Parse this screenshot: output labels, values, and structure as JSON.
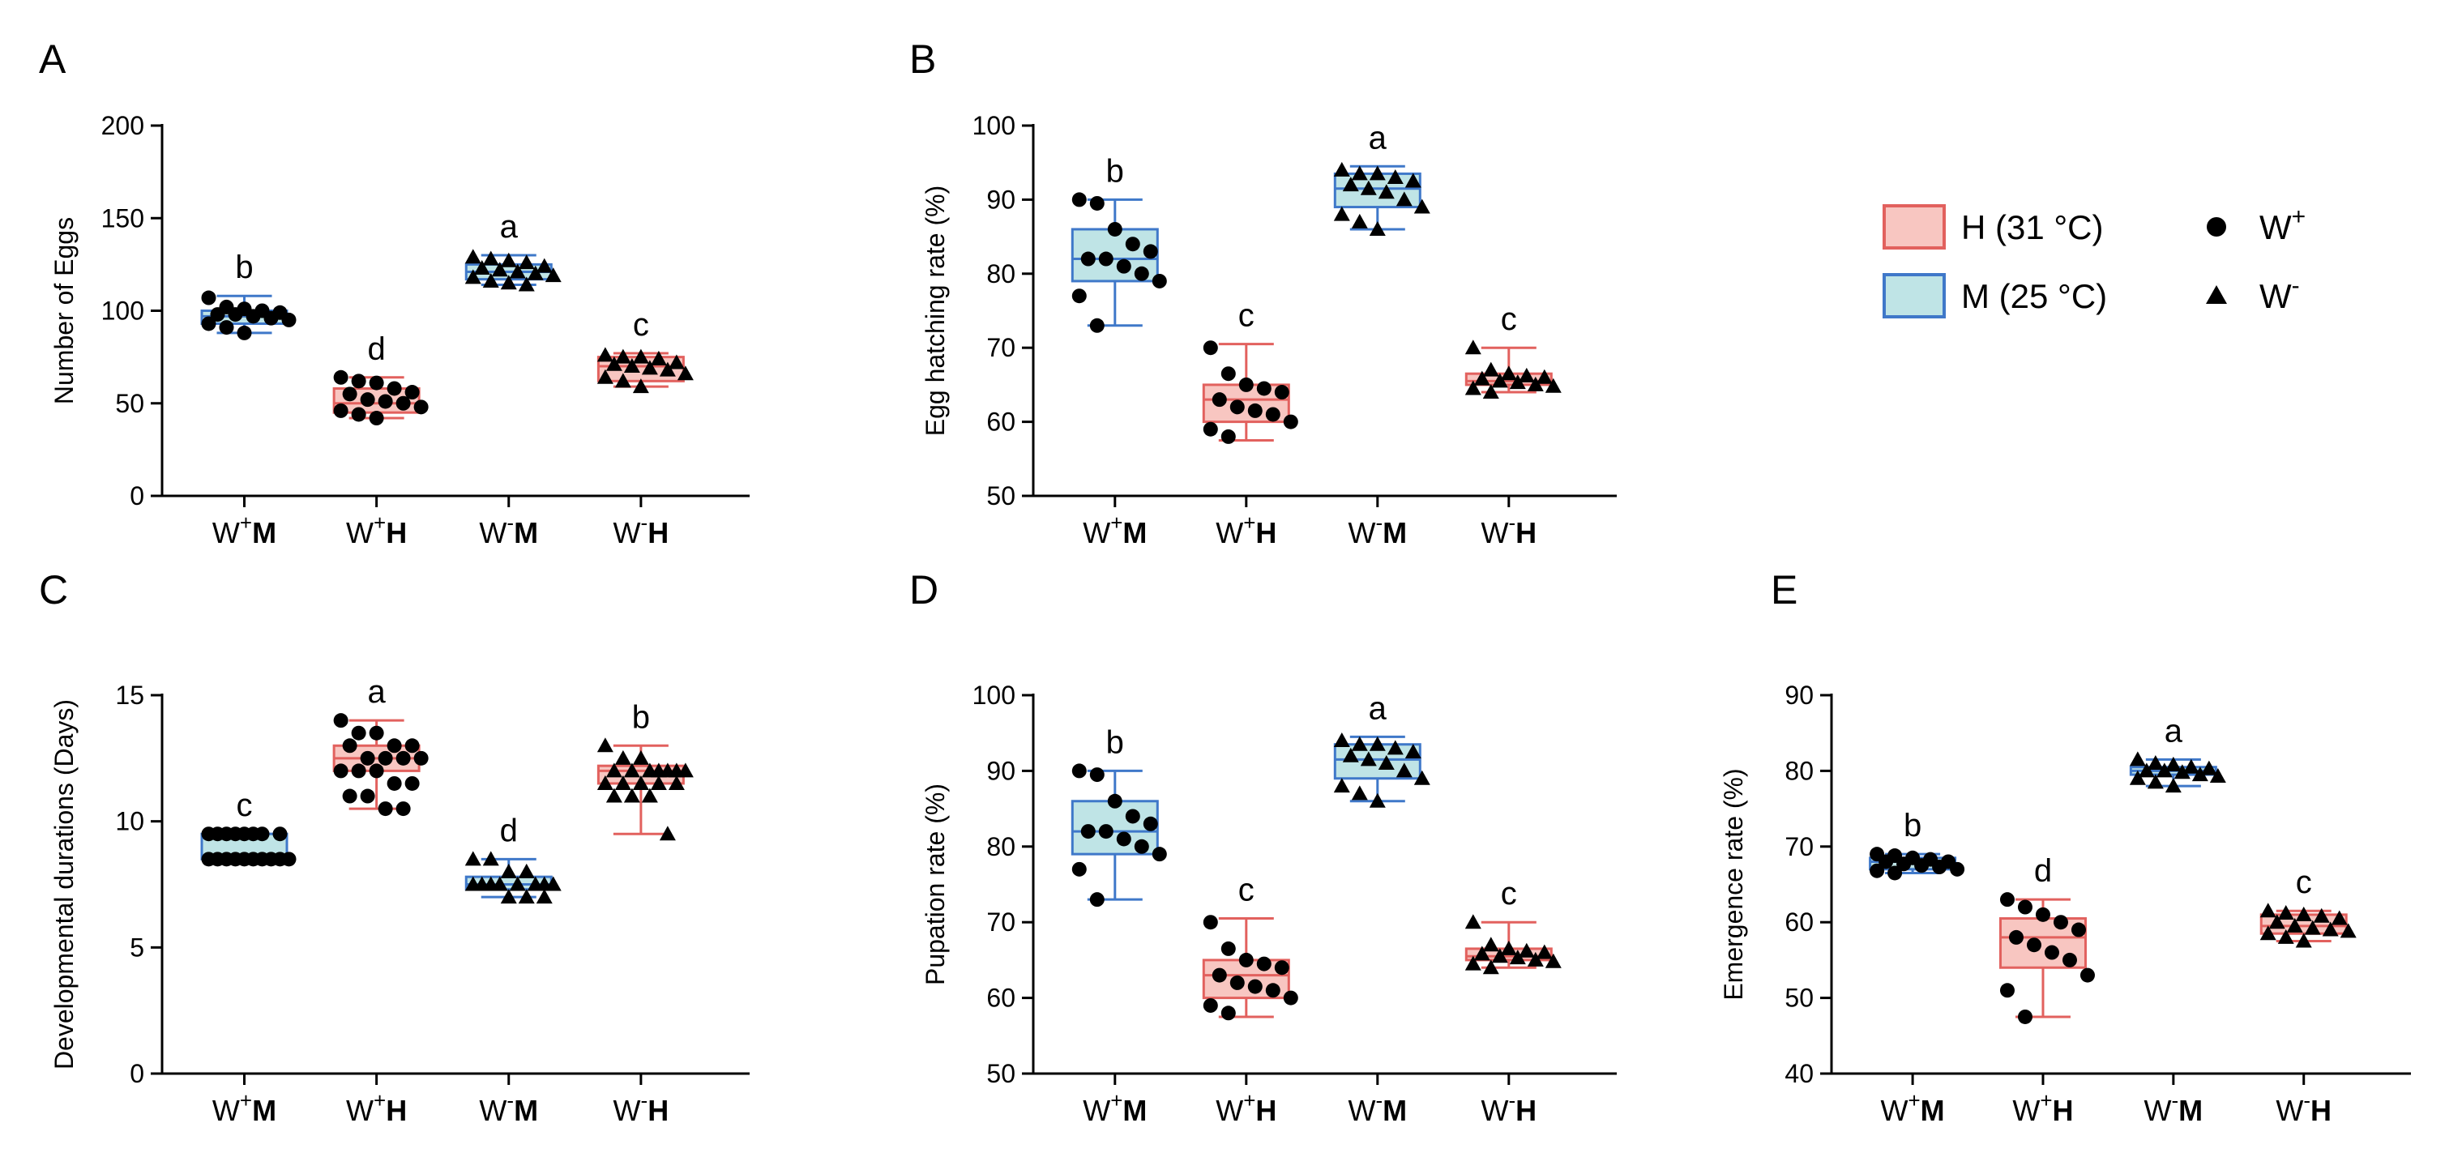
{
  "colors": {
    "H_edge": "#e2615e",
    "H_fill": "#f8c6c1",
    "M_edge": "#3f78c9",
    "M_fill": "#bfe4e6",
    "point": "#000000"
  },
  "legend": {
    "entries": [
      {
        "label": "H (31 °C)",
        "key": "H"
      },
      {
        "label": "M (25 °C)",
        "key": "M"
      },
      {
        "label": "W",
        "sup": "+",
        "marker": "circle"
      },
      {
        "label": "W",
        "sup": "-",
        "marker": "triangle"
      }
    ]
  },
  "chart_data": [
    {
      "panel": "A",
      "type": "box",
      "ylabel": "Number of Eggs",
      "ylim": [
        0,
        200
      ],
      "yticks": [
        0,
        50,
        100,
        150,
        200
      ],
      "groups": [
        {
          "w": "W",
          "sup": "+",
          "t": "M",
          "temp": "M",
          "marker": "circle",
          "letter": "b",
          "min": 88,
          "q1": 93,
          "median": 97,
          "q3": 100,
          "max": 108,
          "points": [
            107,
            102,
            101,
            100,
            99,
            98,
            98,
            97,
            96,
            95,
            93,
            91,
            88
          ]
        },
        {
          "w": "W",
          "sup": "+",
          "t": "H",
          "temp": "H",
          "marker": "circle",
          "letter": "d",
          "min": 42,
          "q1": 45,
          "median": 50,
          "q3": 58,
          "max": 64,
          "points": [
            64,
            62,
            61,
            58,
            56,
            55,
            52,
            51,
            50,
            48,
            46,
            44,
            42
          ]
        },
        {
          "w": "W",
          "sup": "-",
          "t": "M",
          "temp": "M",
          "marker": "triangle",
          "letter": "a",
          "min": 114,
          "q1": 117,
          "median": 121,
          "q3": 125,
          "max": 130,
          "points": [
            129,
            128,
            127,
            126,
            124,
            123,
            122,
            121,
            120,
            119,
            118,
            116,
            115,
            114
          ]
        },
        {
          "w": "W",
          "sup": "-",
          "t": "H",
          "temp": "H",
          "marker": "triangle",
          "letter": "c",
          "min": 59,
          "q1": 62,
          "median": 70,
          "q3": 75,
          "max": 77,
          "points": [
            76,
            75,
            75,
            74,
            72,
            71,
            70,
            69,
            68,
            66,
            64,
            62,
            59
          ]
        }
      ]
    },
    {
      "panel": "B",
      "type": "box",
      "ylabel": "Egg hatching rate (%)",
      "ylim": [
        50,
        100
      ],
      "yticks": [
        50,
        60,
        70,
        80,
        90,
        100
      ],
      "groups": [
        {
          "w": "W",
          "sup": "+",
          "t": "M",
          "temp": "M",
          "marker": "circle",
          "letter": "b",
          "min": 73,
          "q1": 79,
          "median": 82,
          "q3": 86,
          "max": 90,
          "points": [
            90,
            89.5,
            86,
            84,
            83,
            82,
            82,
            81,
            80,
            79,
            77,
            73
          ]
        },
        {
          "w": "W",
          "sup": "+",
          "t": "H",
          "temp": "H",
          "marker": "circle",
          "letter": "c",
          "min": 57.5,
          "q1": 60,
          "median": 63,
          "q3": 65,
          "max": 70.5,
          "points": [
            70,
            66.5,
            65,
            64.5,
            64,
            63,
            62,
            61.5,
            61,
            60,
            59,
            58
          ]
        },
        {
          "w": "W",
          "sup": "-",
          "t": "M",
          "temp": "M",
          "marker": "triangle",
          "letter": "a",
          "min": 86,
          "q1": 89,
          "median": 91.5,
          "q3": 93.5,
          "max": 94.5,
          "points": [
            94,
            93.5,
            93.5,
            93,
            92.5,
            92,
            91.5,
            91,
            90,
            89,
            88,
            87,
            86
          ]
        },
        {
          "w": "W",
          "sup": "-",
          "t": "H",
          "temp": "H",
          "marker": "triangle",
          "letter": "c",
          "min": 64,
          "q1": 65,
          "median": 65.5,
          "q3": 66.5,
          "max": 70,
          "points": [
            70,
            67,
            66.5,
            66.2,
            66,
            65.8,
            65.5,
            65.3,
            65,
            64.8,
            64.5,
            64
          ]
        }
      ]
    },
    {
      "panel": "C",
      "type": "box",
      "ylabel": "Developmental durations (Days)",
      "ylim": [
        0,
        15
      ],
      "yticks": [
        0,
        5,
        10,
        15
      ],
      "groups": [
        {
          "w": "W",
          "sup": "+",
          "t": "M",
          "temp": "M",
          "marker": "circle",
          "letter": "c",
          "min": 8.5,
          "q1": 8.5,
          "median": 8.5,
          "q3": 9.5,
          "max": 9.5,
          "points": [
            9.5,
            9.5,
            9.5,
            9.5,
            9.5,
            9.5,
            9.5,
            9.5,
            8.5,
            8.5,
            8.5,
            8.5,
            8.5,
            8.5,
            8.5,
            8.5,
            8.5,
            8.5
          ]
        },
        {
          "w": "W",
          "sup": "+",
          "t": "H",
          "temp": "H",
          "marker": "circle",
          "letter": "a",
          "min": 10.5,
          "q1": 12,
          "median": 12.5,
          "q3": 13,
          "max": 14,
          "points": [
            14,
            13.5,
            13.5,
            13,
            13,
            13,
            12.5,
            12.5,
            12.5,
            12.5,
            12,
            12,
            12,
            11.5,
            11.5,
            11,
            11,
            10.5,
            10.5
          ]
        },
        {
          "w": "W",
          "sup": "-",
          "t": "M",
          "temp": "M",
          "marker": "triangle",
          "letter": "d",
          "min": 7,
          "q1": 7.3,
          "median": 7.5,
          "q3": 7.8,
          "max": 8.5,
          "points": [
            8.5,
            8.5,
            8,
            8,
            7.5,
            7.5,
            7.5,
            7.5,
            7.5,
            7.5,
            7.5,
            7.5,
            7,
            7,
            7
          ]
        },
        {
          "w": "W",
          "sup": "-",
          "t": "H",
          "temp": "H",
          "marker": "triangle",
          "letter": "b",
          "min": 9.5,
          "q1": 11.5,
          "median": 12,
          "q3": 12.2,
          "max": 13,
          "points": [
            13,
            12.5,
            12.5,
            12,
            12,
            12,
            12,
            12,
            12,
            12,
            11.5,
            11.5,
            11.5,
            11.5,
            11.5,
            11,
            11,
            11,
            9.5
          ]
        }
      ]
    },
    {
      "panel": "D",
      "type": "box",
      "ylabel": "Pupation rate (%)",
      "ylim": [
        50,
        100
      ],
      "yticks": [
        50,
        60,
        70,
        80,
        90,
        100
      ],
      "groups": [
        {
          "w": "W",
          "sup": "+",
          "t": "M",
          "temp": "M",
          "marker": "circle",
          "letter": "b",
          "min": 73,
          "q1": 79,
          "median": 82,
          "q3": 86,
          "max": 90,
          "points": [
            90,
            89.5,
            86,
            84,
            83,
            82,
            82,
            81,
            80,
            79,
            77,
            73
          ]
        },
        {
          "w": "W",
          "sup": "+",
          "t": "H",
          "temp": "H",
          "marker": "circle",
          "letter": "c",
          "min": 57.5,
          "q1": 60,
          "median": 63,
          "q3": 65,
          "max": 70.5,
          "points": [
            70,
            66.5,
            65,
            64.5,
            64,
            63,
            62,
            61.5,
            61,
            60,
            59,
            58
          ]
        },
        {
          "w": "W",
          "sup": "-",
          "t": "M",
          "temp": "M",
          "marker": "triangle",
          "letter": "a",
          "min": 86,
          "q1": 89,
          "median": 91.5,
          "q3": 93.5,
          "max": 94.5,
          "points": [
            94,
            93.5,
            93.5,
            93,
            92.5,
            92,
            91.5,
            91,
            90,
            89,
            88,
            87,
            86
          ]
        },
        {
          "w": "W",
          "sup": "-",
          "t": "H",
          "temp": "H",
          "marker": "triangle",
          "letter": "c",
          "min": 64,
          "q1": 65,
          "median": 65.5,
          "q3": 66.5,
          "max": 70,
          "points": [
            70,
            67,
            66.5,
            66.2,
            66,
            65.8,
            65.5,
            65.3,
            65,
            64.8,
            64.5,
            64
          ]
        }
      ]
    },
    {
      "panel": "E",
      "type": "box",
      "ylabel": "Emergence rate (%)",
      "ylim": [
        40,
        90
      ],
      "yticks": [
        40,
        50,
        60,
        70,
        80,
        90
      ],
      "groups": [
        {
          "w": "W",
          "sup": "+",
          "t": "M",
          "temp": "M",
          "marker": "circle",
          "letter": "b",
          "min": 66.5,
          "q1": 67,
          "median": 68,
          "q3": 68.5,
          "max": 69,
          "points": [
            69,
            68.8,
            68.5,
            68.3,
            68,
            68,
            67.7,
            67.5,
            67.3,
            67,
            66.8,
            66.5
          ]
        },
        {
          "w": "W",
          "sup": "+",
          "t": "H",
          "temp": "H",
          "marker": "circle",
          "letter": "d",
          "min": 47.5,
          "q1": 54,
          "median": 58,
          "q3": 60.5,
          "max": 63,
          "points": [
            63,
            62,
            61,
            60,
            59,
            58,
            57,
            56,
            55,
            53,
            51,
            47.5
          ]
        },
        {
          "w": "W",
          "sup": "-",
          "t": "M",
          "temp": "M",
          "marker": "triangle",
          "letter": "a",
          "min": 78,
          "q1": 79.5,
          "median": 80,
          "q3": 80.5,
          "max": 81.5,
          "points": [
            81.5,
            81,
            80.8,
            80.5,
            80.3,
            80,
            80,
            79.8,
            79.5,
            79.3,
            79,
            78.5,
            78
          ]
        },
        {
          "w": "W",
          "sup": "-",
          "t": "H",
          "temp": "H",
          "marker": "triangle",
          "letter": "c",
          "min": 57.5,
          "q1": 58.5,
          "median": 59.5,
          "q3": 61,
          "max": 61.5,
          "points": [
            61.5,
            61.2,
            61,
            60.8,
            60.5,
            60,
            59.5,
            59.2,
            59,
            58.8,
            58.5,
            58,
            57.5
          ]
        }
      ]
    }
  ]
}
